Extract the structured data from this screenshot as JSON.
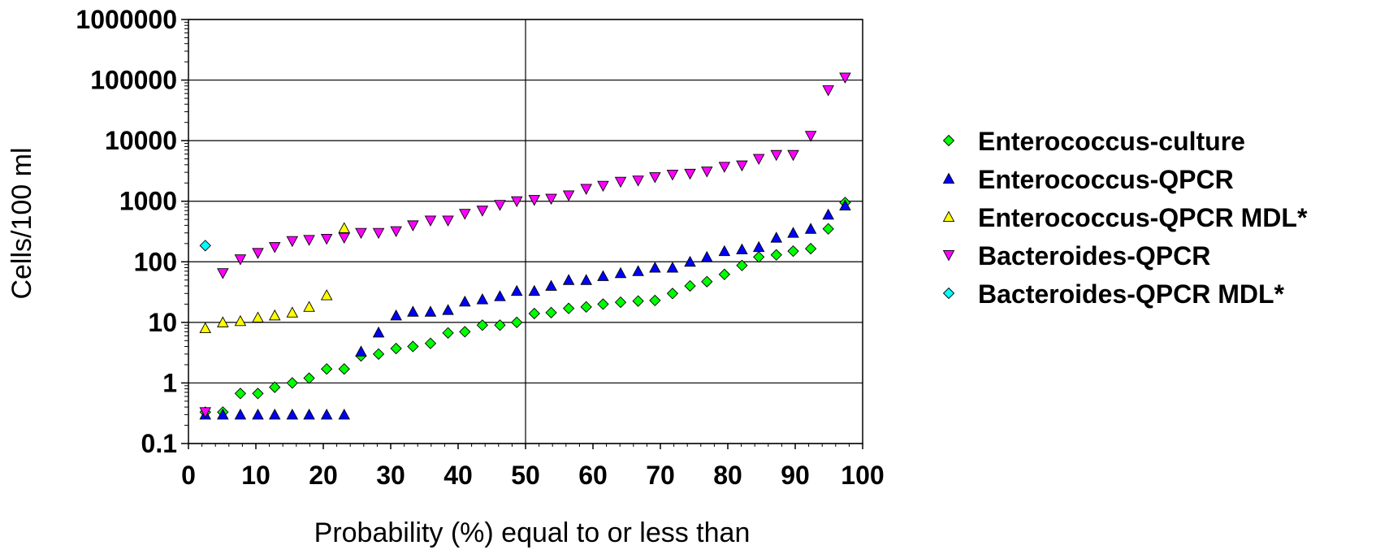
{
  "chart_data": {
    "type": "scatter",
    "xlabel": "Probability (%) equal to or less than",
    "ylabel": "Cells/100 ml",
    "xlim": [
      0,
      100
    ],
    "ylim": [
      0.1,
      1000000
    ],
    "y_scale": "log",
    "x_ticks": [
      "0",
      "10",
      "20",
      "30",
      "40",
      "50",
      "60",
      "70",
      "80",
      "90",
      "100"
    ],
    "y_ticks": [
      "0.1",
      "1",
      "10",
      "100",
      "1000",
      "10000",
      "100000",
      "1000000"
    ],
    "grid": "horizontal major lines at each decade plus a vertical line at x=50",
    "legend_position": "right",
    "colors": {
      "enterococcus_culture": "#00ff00",
      "enterococcus_qpcr": "#0000ff",
      "enterococcus_qpcr_mdl": "#ffff00",
      "bacteroides_qpcr": "#ff00ff",
      "bacteroides_qpcr_mdl": "#00ffff"
    },
    "series": [
      {
        "name": "Enterococcus-culture",
        "marker": "diamond",
        "color": "#00ff00",
        "x": [
          2.5,
          5.1,
          7.7,
          10.3,
          12.8,
          15.4,
          17.9,
          20.5,
          23.1,
          25.6,
          28.2,
          30.8,
          33.3,
          35.9,
          38.5,
          41.0,
          43.6,
          46.2,
          48.7,
          51.3,
          53.8,
          56.4,
          59.0,
          61.5,
          64.1,
          66.7,
          69.2,
          71.8,
          74.4,
          76.9,
          79.5,
          82.1,
          84.6,
          87.2,
          89.7,
          92.3,
          94.9,
          97.4
        ],
        "y": [
          0.33,
          0.33,
          0.67,
          0.67,
          0.85,
          1.0,
          1.2,
          1.7,
          1.7,
          2.8,
          3.0,
          3.7,
          4.0,
          4.5,
          6.7,
          7.0,
          9.0,
          9.0,
          10,
          14,
          14.5,
          17,
          18,
          20,
          21.5,
          22.5,
          23,
          30,
          40,
          47,
          62,
          87,
          120,
          130,
          150,
          165,
          350,
          950
        ]
      },
      {
        "name": "Enterococcus-QPCR",
        "marker": "triangle-up",
        "color": "#0000ff",
        "x": [
          2.5,
          5.1,
          7.7,
          10.3,
          12.8,
          15.4,
          17.9,
          20.5,
          23.1,
          25.6,
          28.2,
          30.8,
          33.3,
          35.9,
          38.5,
          41.0,
          43.6,
          46.2,
          48.7,
          51.3,
          53.8,
          56.4,
          59.0,
          61.5,
          64.1,
          66.7,
          69.2,
          71.8,
          74.4,
          76.9,
          79.5,
          82.1,
          84.6,
          87.2,
          89.7,
          92.3,
          94.9,
          97.4
        ],
        "y": [
          0.3,
          0.3,
          0.3,
          0.3,
          0.3,
          0.3,
          0.3,
          0.3,
          0.3,
          3.3,
          6.8,
          13,
          15,
          15,
          16,
          22,
          24,
          27,
          33,
          33,
          40,
          50,
          50,
          58,
          65,
          70,
          80,
          80,
          100,
          120,
          150,
          160,
          175,
          250,
          300,
          350,
          600,
          850
        ]
      },
      {
        "name": "Enterococcus-QPCR MDL*",
        "marker": "triangle-up",
        "color": "#ffff00",
        "x": [
          2.5,
          5.1,
          7.7,
          10.3,
          12.8,
          15.4,
          17.9,
          20.5,
          23.1
        ],
        "y": [
          8,
          10,
          10.5,
          12,
          13,
          14.5,
          18,
          28,
          360
        ]
      },
      {
        "name": "Bacteroides-QPCR",
        "marker": "triangle-down",
        "color": "#ff00ff",
        "x": [
          2.5,
          5.1,
          7.7,
          10.3,
          12.8,
          15.4,
          17.9,
          20.5,
          23.1,
          25.6,
          28.2,
          30.8,
          33.3,
          35.9,
          38.5,
          41.0,
          43.6,
          46.2,
          48.7,
          51.3,
          53.8,
          56.4,
          59.0,
          61.5,
          64.1,
          66.7,
          69.2,
          71.8,
          74.4,
          76.9,
          79.5,
          82.1,
          84.6,
          87.2,
          89.7,
          92.3,
          94.9,
          97.4
        ],
        "y": [
          0.33,
          65,
          110,
          140,
          175,
          220,
          230,
          240,
          250,
          300,
          300,
          320,
          400,
          480,
          480,
          620,
          700,
          870,
          1000,
          1050,
          1100,
          1250,
          1600,
          1800,
          2100,
          2200,
          2500,
          2750,
          2850,
          3100,
          3700,
          3900,
          5000,
          5800,
          5800,
          12000,
          68000,
          110000
        ]
      },
      {
        "name": "Bacteroides-QPCR MDL*",
        "marker": "diamond",
        "color": "#00ffff",
        "x": [
          2.5
        ],
        "y": [
          185
        ]
      }
    ]
  }
}
